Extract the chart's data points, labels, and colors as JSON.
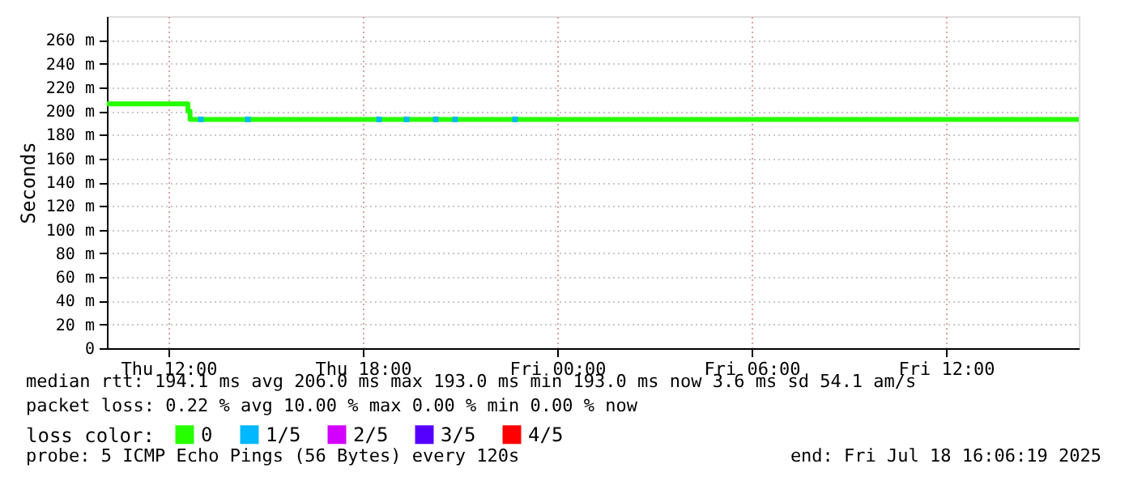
{
  "chart_data": {
    "type": "step",
    "ylabel": "Seconds",
    "legend_title": "loss color:",
    "legend": "bottom",
    "grid": true,
    "xlim": [
      "2025-07-17T10:06",
      "2025-07-18T16:06"
    ],
    "xticks": [
      {
        "value": "2025-07-17T12:00",
        "label": "Thu 12:00"
      },
      {
        "value": "2025-07-17T18:00",
        "label": "Thu 18:00"
      },
      {
        "value": "2025-07-18T00:00",
        "label": "Fri 00:00"
      },
      {
        "value": "2025-07-18T06:00",
        "label": "Fri 06:00"
      },
      {
        "value": "2025-07-18T12:00",
        "label": "Fri 12:00"
      }
    ],
    "ylim": [
      0,
      280
    ],
    "yticks": [
      0,
      {
        "value": 20,
        "label": "20 m"
      },
      {
        "value": 40,
        "label": "40 m"
      },
      {
        "value": 60,
        "label": "60 m"
      },
      {
        "value": 80,
        "label": "80 m"
      },
      {
        "value": 100,
        "label": "100 m"
      },
      {
        "value": 120,
        "label": "120 m"
      },
      {
        "value": 140,
        "label": "140 m"
      },
      {
        "value": 160,
        "label": "160 m"
      },
      {
        "value": 180,
        "label": "180 m"
      },
      {
        "value": 200,
        "label": "200 m"
      },
      {
        "value": 220,
        "label": "220 m"
      },
      {
        "value": 240,
        "label": "240 m"
      },
      {
        "value": 260,
        "label": "260 m"
      }
    ],
    "series": [
      {
        "name": "0",
        "color": "#26ff00",
        "x": [
          "2025-07-17T10:06",
          "2025-07-17T12:36",
          "2025-07-17T12:40",
          "2025-07-18T16:06"
        ],
        "values": [
          206,
          200,
          193,
          193
        ]
      },
      {
        "name": "1/5",
        "color": "#00b8ff",
        "type": "scatter",
        "x": [
          "2025-07-17T13:00",
          "2025-07-17T14:27",
          "2025-07-17T18:30",
          "2025-07-17T19:21",
          "2025-07-17T20:15",
          "2025-07-17T20:51",
          "2025-07-17T22:42"
        ],
        "values": [
          193,
          193,
          193,
          193,
          193,
          193,
          193
        ]
      },
      {
        "name": "2/5",
        "color": "#d300ff",
        "type": "scatter"
      },
      {
        "name": "3/5",
        "color": "#5500ff",
        "type": "scatter"
      },
      {
        "name": "4/5",
        "color": "#ff0000",
        "type": "scatter"
      }
    ],
    "annotations": [
      "median rtt:  194.1 ms avg  206.0 ms max  193.0 ms min  193.0 ms now  3.6 ms sd  54.1   am/s",
      "packet loss: 0.22 % avg  10.00 % max  0.00 % min  0.00 % now",
      "probe:       5 ICMP Echo Pings (56 Bytes) every 120s",
      "end: Fri Jul 18 16:06:19 2025"
    ]
  }
}
